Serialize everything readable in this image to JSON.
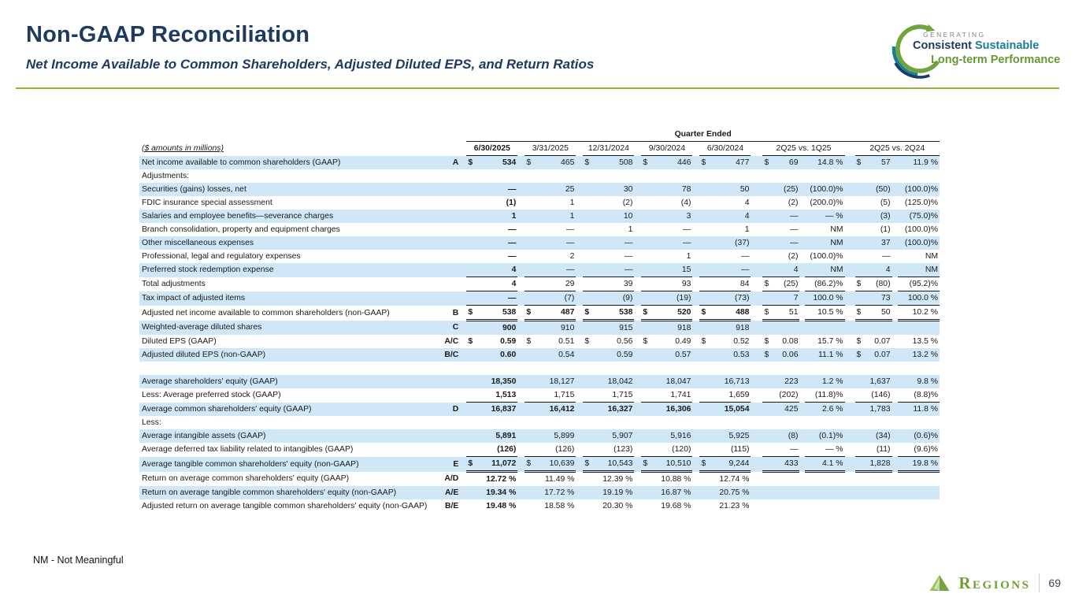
{
  "slide": {
    "title": "Non-GAAP Reconciliation",
    "subtitle": "Net Income Available to Common Shareholders, Adjusted Diluted EPS, and Return Ratios",
    "footnote": "NM - Not Meaningful",
    "page_number": "69",
    "brand": "Regions"
  },
  "logo": {
    "line1": "GENERATING",
    "line2_a": "Consistent",
    "line2_b": "Sustainable",
    "line3": "Long-term Performance"
  },
  "colors": {
    "navy": "#1e3a5f",
    "teal": "#1a7f96",
    "brand_green": "#6f9f33",
    "olive_rule": "#9fad33",
    "row_highlight": "#cfe7f6"
  },
  "table": {
    "units_label": "($ amounts in millions)",
    "span_header": "Quarter Ended",
    "columns": [
      "6/30/2025",
      "3/31/2025",
      "12/31/2024",
      "9/30/2024",
      "6/30/2024",
      "2Q25 vs. 1Q25",
      "2Q25 vs. 2Q24"
    ],
    "rows": [
      {
        "label": "Net income available to common shareholders (GAAP)",
        "ref": "A",
        "q": [
          {
            "d": "$",
            "v": "534"
          },
          {
            "d": "$",
            "v": "465"
          },
          {
            "d": "$",
            "v": "508"
          },
          {
            "d": "$",
            "v": "446"
          },
          {
            "d": "$",
            "v": "477"
          }
        ],
        "vs1": {
          "d": "$",
          "v": "69",
          "p": "14.8 %"
        },
        "vs2": {
          "d": "$",
          "v": "57",
          "p": "11.9 %"
        },
        "shade": true
      },
      {
        "label": "Adjustments:"
      },
      {
        "label": "Securities (gains) losses, net",
        "q": [
          {
            "v": "—"
          },
          {
            "v": "25"
          },
          {
            "v": "30"
          },
          {
            "v": "78"
          },
          {
            "v": "50"
          }
        ],
        "vs1": {
          "v": "(25)",
          "p": "(100.0)%"
        },
        "vs2": {
          "v": "(50)",
          "p": "(100.0)%"
        },
        "shade": true
      },
      {
        "label": "FDIC insurance special assessment",
        "q": [
          {
            "v": "(1)"
          },
          {
            "v": "1"
          },
          {
            "v": "(2)"
          },
          {
            "v": "(4)"
          },
          {
            "v": "4"
          }
        ],
        "vs1": {
          "v": "(2)",
          "p": "(200.0)%"
        },
        "vs2": {
          "v": "(5)",
          "p": "(125.0)%"
        }
      },
      {
        "label": "Salaries and employee benefits—severance charges",
        "q": [
          {
            "v": "1"
          },
          {
            "v": "1"
          },
          {
            "v": "10"
          },
          {
            "v": "3"
          },
          {
            "v": "4"
          }
        ],
        "vs1": {
          "v": "—",
          "p": "— %"
        },
        "vs2": {
          "v": "(3)",
          "p": "(75.0)%"
        },
        "shade": true
      },
      {
        "label": "Branch consolidation, property and equipment charges",
        "q": [
          {
            "v": "—"
          },
          {
            "v": "—"
          },
          {
            "v": "1"
          },
          {
            "v": "—"
          },
          {
            "v": "1"
          }
        ],
        "vs1": {
          "v": "—",
          "p": "NM"
        },
        "vs2": {
          "v": "(1)",
          "p": "(100.0)%"
        }
      },
      {
        "label": "Other miscellaneous expenses",
        "q": [
          {
            "v": "—"
          },
          {
            "v": "—"
          },
          {
            "v": "—"
          },
          {
            "v": "—"
          },
          {
            "v": "(37)"
          }
        ],
        "vs1": {
          "v": "—",
          "p": "NM"
        },
        "vs2": {
          "v": "37",
          "p": "(100.0)%"
        },
        "shade": true
      },
      {
        "label": "Professional, legal and regulatory expenses",
        "q": [
          {
            "v": "—"
          },
          {
            "v": "2"
          },
          {
            "v": "—"
          },
          {
            "v": "1"
          },
          {
            "v": "—"
          }
        ],
        "vs1": {
          "v": "(2)",
          "p": "(100.0)%"
        },
        "vs2": {
          "v": "—",
          "p": "NM"
        }
      },
      {
        "label": "Preferred stock redemption expense",
        "q": [
          {
            "v": "4"
          },
          {
            "v": "—"
          },
          {
            "v": "—"
          },
          {
            "v": "15"
          },
          {
            "v": "—"
          }
        ],
        "vs1": {
          "v": "4",
          "p": "NM"
        },
        "vs2": {
          "v": "4",
          "p": "NM"
        },
        "shade": true,
        "border": "single"
      },
      {
        "label": "Total adjustments",
        "q": [
          {
            "v": "4"
          },
          {
            "v": "29"
          },
          {
            "v": "39"
          },
          {
            "v": "93"
          },
          {
            "v": "84"
          }
        ],
        "vs1": {
          "d": "$",
          "v": "(25)",
          "p": "(86.2)%"
        },
        "vs2": {
          "d": "$",
          "v": "(80)",
          "p": "(95.2)%"
        },
        "border": "single"
      },
      {
        "label": "Tax impact of adjusted items",
        "q": [
          {
            "v": "—"
          },
          {
            "v": "(7)"
          },
          {
            "v": "(9)"
          },
          {
            "v": "(19)"
          },
          {
            "v": "(73)"
          }
        ],
        "vs1": {
          "v": "7",
          "p": "100.0 %"
        },
        "vs2": {
          "v": "73",
          "p": "100.0 %"
        },
        "shade": true,
        "border": "single"
      },
      {
        "label": "Adjusted net income available to common shareholders (non-GAAP)",
        "ref": "B",
        "q": [
          {
            "d": "$",
            "v": "538"
          },
          {
            "d": "$",
            "v": "487"
          },
          {
            "d": "$",
            "v": "538"
          },
          {
            "d": "$",
            "v": "520"
          },
          {
            "d": "$",
            "v": "488"
          }
        ],
        "vs1": {
          "d": "$",
          "v": "51",
          "p": "10.5 %"
        },
        "vs2": {
          "d": "$",
          "v": "50",
          "p": "10.2 %"
        },
        "border": "double",
        "boldAll": true
      },
      {
        "label": "Weighted-average diluted shares",
        "ref": "C",
        "q": [
          {
            "v": "900"
          },
          {
            "v": "910"
          },
          {
            "v": "915"
          },
          {
            "v": "918"
          },
          {
            "v": "918"
          }
        ],
        "shade": true
      },
      {
        "label": "Diluted EPS (GAAP)",
        "ref": "A/C",
        "q": [
          {
            "d": "$",
            "v": "0.59"
          },
          {
            "d": "$",
            "v": "0.51"
          },
          {
            "d": "$",
            "v": "0.56"
          },
          {
            "d": "$",
            "v": "0.49"
          },
          {
            "d": "$",
            "v": "0.52"
          }
        ],
        "vs1": {
          "d": "$",
          "v": "0.08",
          "p": "15.7 %"
        },
        "vs2": {
          "d": "$",
          "v": "0.07",
          "p": "13.5 %"
        }
      },
      {
        "label": "Adjusted diluted EPS (non-GAAP)",
        "ref": "B/C",
        "q": [
          {
            "v": "0.60"
          },
          {
            "v": "0.54"
          },
          {
            "v": "0.59"
          },
          {
            "v": "0.57"
          },
          {
            "v": "0.53"
          }
        ],
        "vs1": {
          "d": "$",
          "v": "0.06",
          "p": "11.1 %"
        },
        "vs2": {
          "d": "$",
          "v": "0.07",
          "p": "13.2 %"
        },
        "shade": true
      },
      {
        "spacer": true
      },
      {
        "label": "Average shareholders' equity (GAAP)",
        "q": [
          {
            "v": "18,350"
          },
          {
            "v": "18,127"
          },
          {
            "v": "18,042"
          },
          {
            "v": "18,047"
          },
          {
            "v": "16,713"
          }
        ],
        "vs1": {
          "v": "223",
          "p": "1.2 %"
        },
        "vs2": {
          "v": "1,637",
          "p": "9.8 %"
        },
        "shade": true
      },
      {
        "label": "Less: Average preferred stock (GAAP)",
        "q": [
          {
            "v": "1,513"
          },
          {
            "v": "1,715"
          },
          {
            "v": "1,715"
          },
          {
            "v": "1,741"
          },
          {
            "v": "1,659"
          }
        ],
        "vs1": {
          "v": "(202)",
          "p": "(11.8)%"
        },
        "vs2": {
          "v": "(146)",
          "p": "(8.8)%"
        },
        "border": "single"
      },
      {
        "label": "Average common shareholders' equity (GAAP)",
        "ref": "D",
        "q": [
          {
            "v": "16,837"
          },
          {
            "v": "16,412"
          },
          {
            "v": "16,327"
          },
          {
            "v": "16,306"
          },
          {
            "v": "15,054"
          }
        ],
        "vs1": {
          "v": "425",
          "p": "2.6 %"
        },
        "vs2": {
          "v": "1,783",
          "p": "11.8 %"
        },
        "shade": true,
        "boldAll": true
      },
      {
        "label": "Less:"
      },
      {
        "label": "Average intangible assets (GAAP)",
        "q": [
          {
            "v": "5,891"
          },
          {
            "v": "5,899"
          },
          {
            "v": "5,907"
          },
          {
            "v": "5,916"
          },
          {
            "v": "5,925"
          }
        ],
        "vs1": {
          "v": "(8)",
          "p": "(0.1)%"
        },
        "vs2": {
          "v": "(34)",
          "p": "(0.6)%"
        },
        "shade": true
      },
      {
        "label": "Average deferred tax liability related to intangibles (GAAP)",
        "q": [
          {
            "v": "(126)"
          },
          {
            "v": "(126)"
          },
          {
            "v": "(123)"
          },
          {
            "v": "(120)"
          },
          {
            "v": "(115)"
          }
        ],
        "vs1": {
          "v": "—",
          "p": "— %"
        },
        "vs2": {
          "v": "(11)",
          "p": "(9.6)%"
        },
        "border": "single"
      },
      {
        "label": "Average tangible common shareholders' equity (non-GAAP)",
        "ref": "E",
        "q": [
          {
            "d": "$",
            "v": "11,072"
          },
          {
            "d": "$",
            "v": "10,639"
          },
          {
            "d": "$",
            "v": "10,543"
          },
          {
            "d": "$",
            "v": "10,510"
          },
          {
            "d": "$",
            "v": "9,244"
          }
        ],
        "vs1": {
          "v": "433",
          "p": "4.1 %"
        },
        "vs2": {
          "v": "1,828",
          "p": "19.8 %"
        },
        "shade": true,
        "border": "double"
      },
      {
        "label": "Return on average common shareholders' equity (GAAP)",
        "ref": "A/D",
        "q": [
          {
            "v": "12.72 %"
          },
          {
            "v": "11.49 %"
          },
          {
            "v": "12.39 %"
          },
          {
            "v": "10.88 %"
          },
          {
            "v": "12.74 %"
          }
        ]
      },
      {
        "label": "Return on average tangible common shareholders' equity (non-GAAP)",
        "ref": "A/E",
        "q": [
          {
            "v": "19.34 %"
          },
          {
            "v": "17.72 %"
          },
          {
            "v": "19.19 %"
          },
          {
            "v": "16.87 %"
          },
          {
            "v": "20.75 %"
          }
        ],
        "shade": true
      },
      {
        "label": "Adjusted return on average tangible common shareholders' equity (non-GAAP)",
        "ref": "B/E",
        "q": [
          {
            "v": "19.48 %"
          },
          {
            "v": "18.58 %"
          },
          {
            "v": "20.30 %"
          },
          {
            "v": "19.68 %"
          },
          {
            "v": "21.23 %"
          }
        ]
      }
    ]
  }
}
